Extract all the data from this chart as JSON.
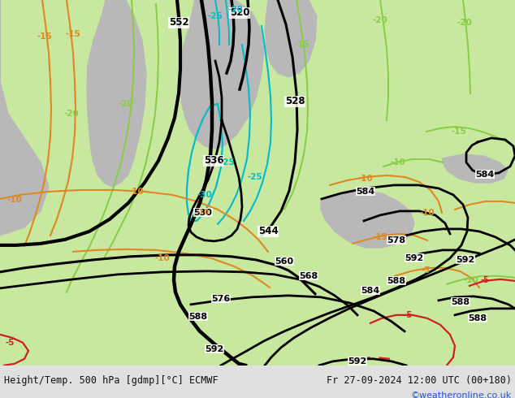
{
  "title_left": "Height/Temp. 500 hPa [gdmp][°C] ECMWF",
  "title_right": "Fr 27-09-2024 12:00 UTC (00+180)",
  "credit": "©weatheronline.co.uk",
  "land_color": "#c8e8a0",
  "sea_color": "#b8b8b8",
  "bottom_bar_color": "#e0e0e0",
  "text_color": "#111111",
  "credit_color": "#2255cc",
  "figsize": [
    6.34,
    4.9
  ],
  "dpi": 100
}
